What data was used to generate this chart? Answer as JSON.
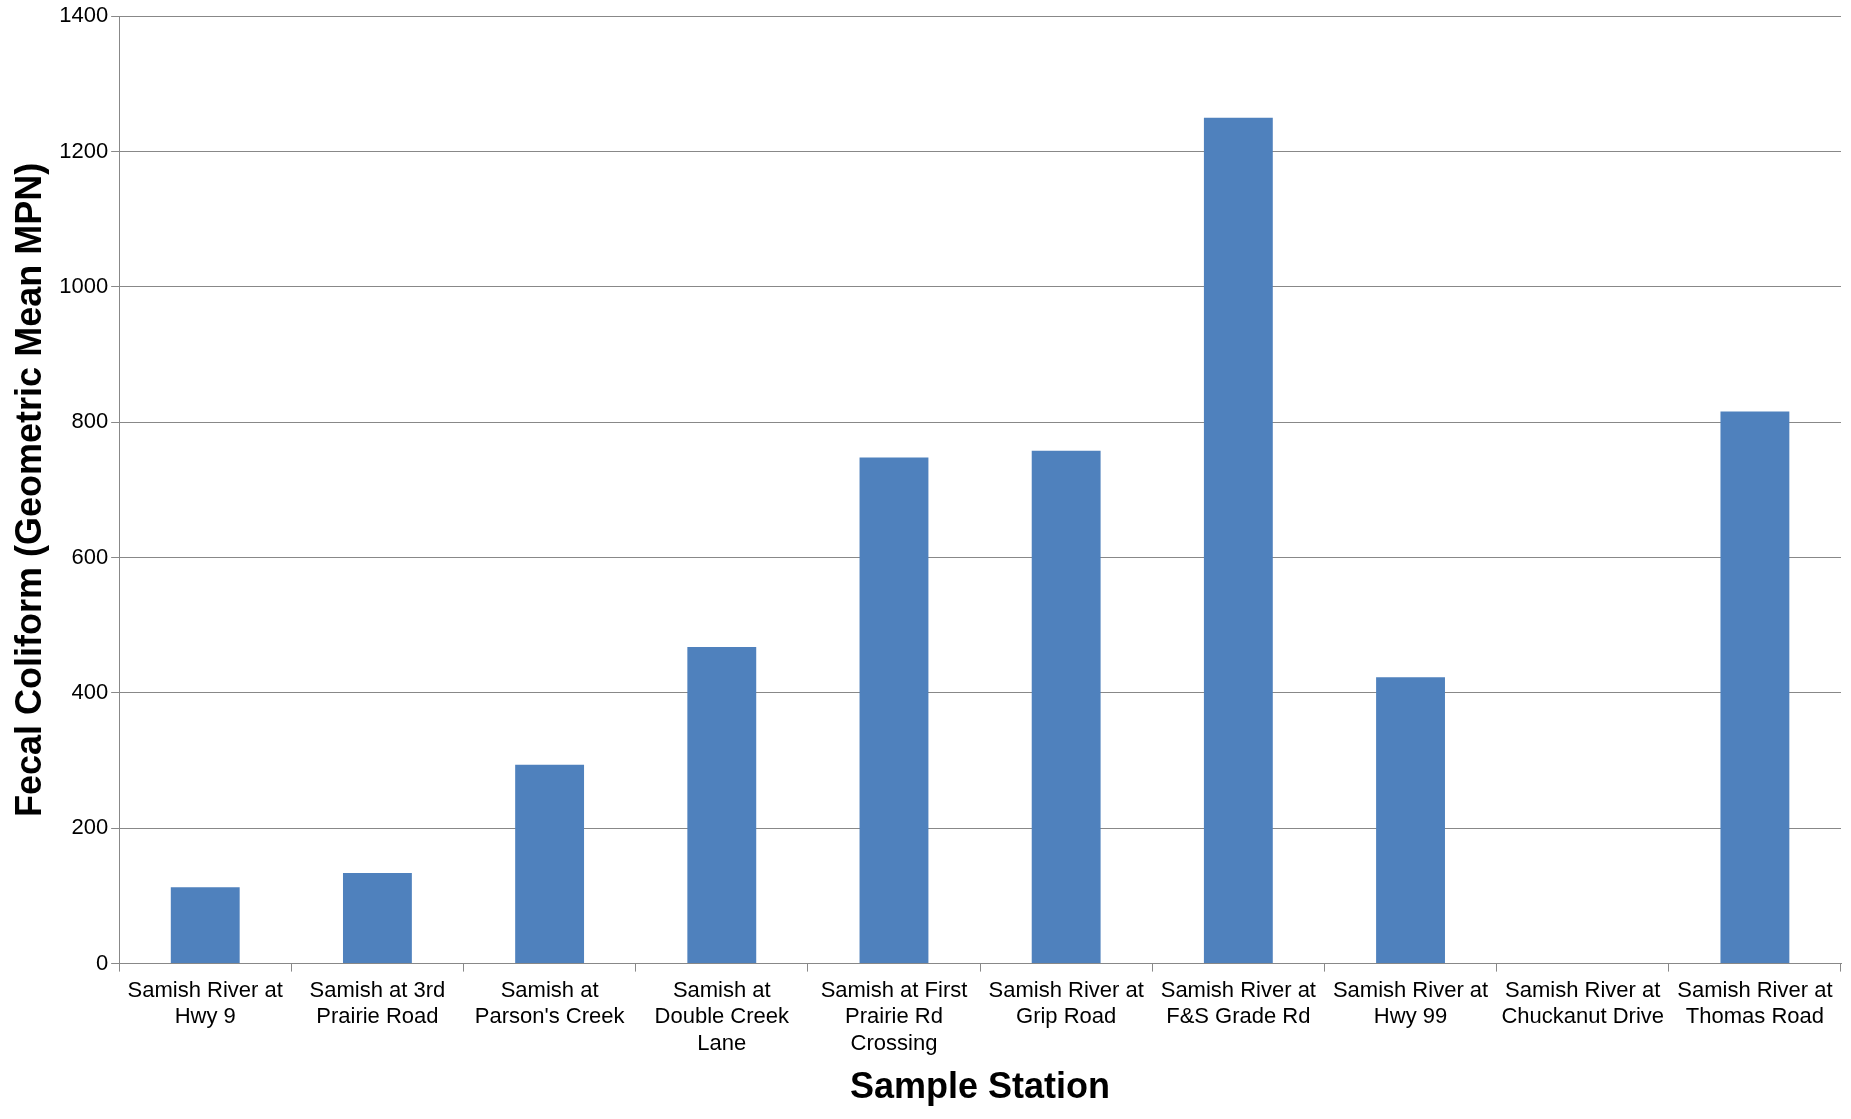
{
  "chart_data": {
    "type": "bar",
    "xlabel": "Sample Station",
    "ylabel": "Fecal Coliform (Geometric Mean MPN)",
    "categories": [
      "Samish River at Hwy 9",
      "Samish at 3rd Prairie Road",
      "Samish at Parson's Creek",
      "Samish at Double Creek Lane",
      "Samish at First Prairie Rd Crossing",
      "Samish River at Grip Road",
      "Samish River at F&S Grade Rd",
      "Samish River at Hwy 99",
      "Samish River at Chuckanut Drive",
      "Samish River at Thomas Road"
    ],
    "values": [
      113,
      134,
      294,
      468,
      748,
      758,
      1250,
      423,
      null,
      816
    ],
    "color": "#4f81bd",
    "ylim": [
      0,
      1400
    ],
    "yticks": [
      0,
      200,
      400,
      600,
      800,
      1000,
      1200,
      1400
    ],
    "grid": "y"
  }
}
